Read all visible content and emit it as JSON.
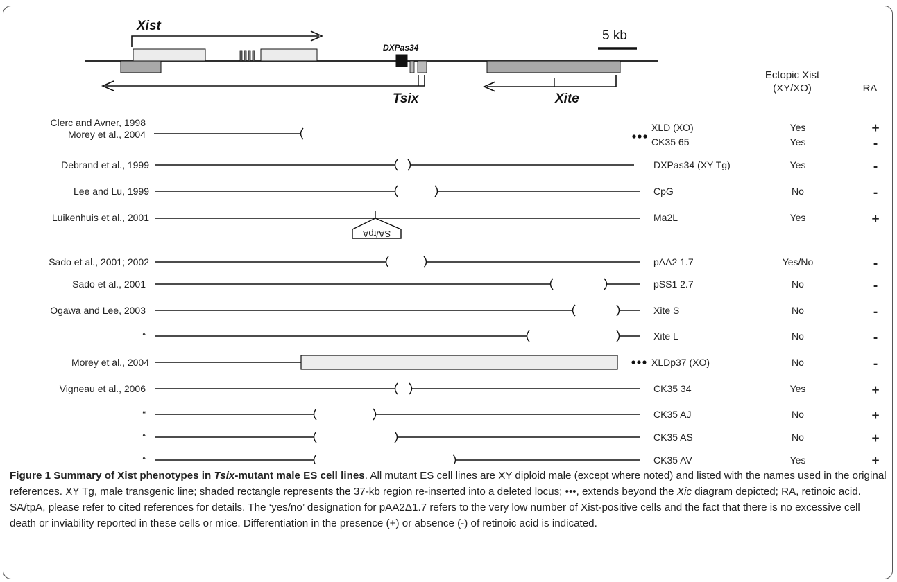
{
  "diagram": {
    "scale_bar_label": "5 kb",
    "gene_labels": {
      "xist": "Xist",
      "dxpas34": "DXPas34",
      "tsix": "Tsix",
      "xite": "Xite"
    },
    "column_headers": {
      "ectopic_line1": "Ectopic Xist",
      "ectopic_line2": "(XY/XO)",
      "ra": "RA"
    },
    "insert_label": "SA/tpA",
    "rows": [
      {
        "reference": "Clerc and Avner, 1998",
        "cell_line": "XLD (XO)",
        "ectopic_xist": "Yes",
        "ra": "+"
      },
      {
        "reference": "Morey et al., 2004",
        "cell_line": "CK35 65",
        "ectopic_xist": "Yes",
        "ra": "-"
      },
      {
        "reference": "Debrand et al., 1999",
        "cell_line": "DXPas34 (XY Tg)",
        "ectopic_xist": "Yes",
        "ra": "-"
      },
      {
        "reference": "Lee and Lu, 1999",
        "cell_line": "CpG",
        "ectopic_xist": "No",
        "ra": "-"
      },
      {
        "reference": "Luikenhuis et al., 2001",
        "cell_line": "Ma2L",
        "ectopic_xist": "Yes",
        "ra": "+"
      },
      {
        "reference": "Sado et al., 2001; 2002",
        "cell_line": "pAA2 1.7",
        "ectopic_xist": "Yes/No",
        "ra": "-"
      },
      {
        "reference": "Sado et al., 2001",
        "cell_line": "pSS1 2.7",
        "ectopic_xist": "No",
        "ra": "-"
      },
      {
        "reference": "Ogawa and Lee, 2003",
        "cell_line": "Xite S",
        "ectopic_xist": "No",
        "ra": "-"
      },
      {
        "reference": "“",
        "cell_line": "Xite L",
        "ectopic_xist": "No",
        "ra": "-"
      },
      {
        "reference": "Morey et al., 2004",
        "cell_line": "XLDp37 (XO)",
        "ectopic_xist": "No",
        "ra": "-"
      },
      {
        "reference": "Vigneau et al., 2006",
        "cell_line": "CK35 34",
        "ectopic_xist": "Yes",
        "ra": "+"
      },
      {
        "reference": "“",
        "cell_line": "CK35 AJ",
        "ectopic_xist": "No",
        "ra": "+"
      },
      {
        "reference": "“",
        "cell_line": "CK35 AS",
        "ectopic_xist": "No",
        "ra": "+"
      },
      {
        "reference": "“",
        "cell_line": "CK35 AV",
        "ectopic_xist": "Yes",
        "ra": "+"
      }
    ]
  },
  "caption": {
    "title_prefix": "Figure 1 Summary of Xist phenotypes in ",
    "title_italic": "Tsix",
    "title_suffix": "-mutant male ES cell lines",
    "text1": ". All mutant ES cell lines are XY diploid male (except where noted) and listed with the names used in the original references. XY Tg, male transgenic line; shaded rectangle represents the 37-kb region re-inserted into a deleted locus; •••, extends beyond the ",
    "text_italic": "Xic",
    "text2": " diagram depicted; RA, retinoic acid. SA/tpA, please refer to cited references for details. The ‘yes/no’ designation for pAA2Δ1.7 refers to the very low number of Xist-positive cells and the fact that there is no excessive cell death or inviability reported in these cells or mice. Differentiation in the presence (+) or absence (-) of retinoic acid is indicated."
  }
}
